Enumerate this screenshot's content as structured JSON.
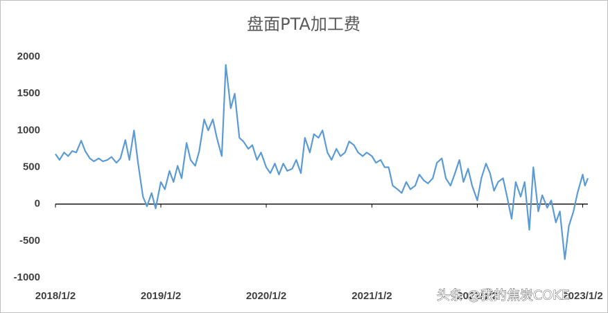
{
  "chart_data": {
    "type": "line",
    "title": "盘面PTA加工费",
    "x": [
      "2018/1/2",
      "2018/1/16",
      "2018/2/1",
      "2018/2/15",
      "2018/3/1",
      "2018/3/15",
      "2018/4/1",
      "2018/4/15",
      "2018/5/1",
      "2018/5/15",
      "2018/6/1",
      "2018/6/15",
      "2018/7/1",
      "2018/7/15",
      "2018/8/1",
      "2018/8/15",
      "2018/9/1",
      "2018/9/15",
      "2018/10/1",
      "2018/10/15",
      "2018/11/1",
      "2018/11/15",
      "2018/12/1",
      "2018/12/15",
      "2019/1/2",
      "2019/1/16",
      "2019/2/1",
      "2019/2/15",
      "2019/3/1",
      "2019/3/15",
      "2019/4/1",
      "2019/4/15",
      "2019/5/1",
      "2019/5/15",
      "2019/6/1",
      "2019/6/15",
      "2019/7/1",
      "2019/7/15",
      "2019/8/1",
      "2019/8/15",
      "2019/9/1",
      "2019/9/15",
      "2019/10/1",
      "2019/10/15",
      "2019/11/1",
      "2019/11/15",
      "2019/12/1",
      "2019/12/15",
      "2020/1/2",
      "2020/1/16",
      "2020/2/1",
      "2020/2/15",
      "2020/3/1",
      "2020/3/15",
      "2020/4/1",
      "2020/4/15",
      "2020/5/1",
      "2020/5/15",
      "2020/6/1",
      "2020/6/15",
      "2020/7/1",
      "2020/7/15",
      "2020/8/1",
      "2020/8/15",
      "2020/9/1",
      "2020/9/15",
      "2020/10/1",
      "2020/10/15",
      "2020/11/1",
      "2020/11/15",
      "2020/12/1",
      "2020/12/15",
      "2021/1/2",
      "2021/1/16",
      "2021/2/1",
      "2021/2/15",
      "2021/3/1",
      "2021/3/15",
      "2021/4/1",
      "2021/4/15",
      "2021/5/1",
      "2021/5/15",
      "2021/6/1",
      "2021/6/15",
      "2021/7/1",
      "2021/7/15",
      "2021/8/1",
      "2021/8/15",
      "2021/9/1",
      "2021/9/15",
      "2021/10/1",
      "2021/10/15",
      "2021/11/1",
      "2021/11/15",
      "2021/12/1",
      "2021/12/15",
      "2022/1/2",
      "2022/1/16",
      "2022/2/1",
      "2022/2/15",
      "2022/3/1",
      "2022/3/15",
      "2022/4/1",
      "2022/4/15",
      "2022/5/1",
      "2022/5/15",
      "2022/6/1",
      "2022/6/15",
      "2022/7/1",
      "2022/7/15",
      "2022/8/1",
      "2022/8/15",
      "2022/9/1",
      "2022/9/15",
      "2022/10/1",
      "2022/10/15",
      "2022/11/1",
      "2022/11/15",
      "2022/12/1",
      "2022/12/15",
      "2023/1/2",
      "2023/1/10",
      "2023/1/20"
    ],
    "series": [
      {
        "color": "#5b9bd5",
        "values": [
          680,
          600,
          700,
          650,
          720,
          700,
          860,
          720,
          620,
          580,
          620,
          580,
          600,
          640,
          560,
          620,
          870,
          600,
          1000,
          560,
          100,
          -30,
          150,
          -60,
          300,
          200,
          450,
          300,
          520,
          350,
          830,
          600,
          520,
          720,
          1150,
          1000,
          1150,
          900,
          650,
          1890,
          1300,
          1500,
          900,
          850,
          750,
          800,
          600,
          700,
          500,
          420,
          550,
          400,
          550,
          450,
          480,
          600,
          420,
          900,
          700,
          950,
          900,
          1000,
          700,
          600,
          750,
          650,
          700,
          850,
          800,
          700,
          650,
          700,
          650,
          560,
          600,
          500,
          500,
          250,
          200,
          150,
          300,
          200,
          250,
          400,
          320,
          280,
          350,
          560,
          620,
          350,
          250,
          400,
          600,
          300,
          480,
          250,
          50,
          350,
          550,
          420,
          180,
          300,
          350,
          100,
          -200,
          300,
          100,
          300,
          -350,
          500,
          -100,
          120,
          -50,
          50,
          -250,
          -100,
          -750,
          -300,
          -100,
          150,
          400,
          250,
          350
        ]
      }
    ],
    "xlim": [
      "2018/1/2",
      "2023/1/20"
    ],
    "xticks": [
      "2018/1/2",
      "2019/1/2",
      "2020/1/2",
      "2021/1/2",
      "2022/1/2",
      "2023/1/2"
    ],
    "ylim": [
      -1000,
      2000
    ],
    "yticks": [
      -1000,
      -500,
      0,
      500,
      1000,
      1500,
      2000
    ],
    "watermark": "头条 @我的焦炭COKE"
  }
}
